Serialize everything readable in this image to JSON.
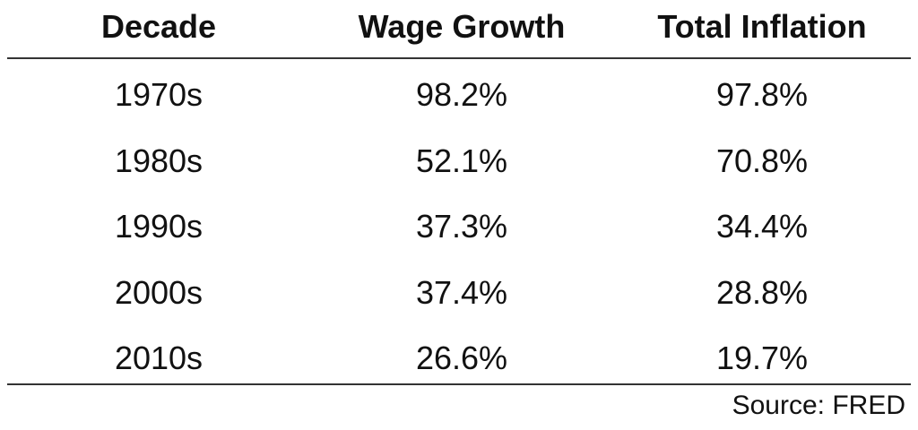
{
  "chart_data": {
    "type": "table",
    "columns": [
      "Decade",
      "Wage Growth",
      "Total Inflation"
    ],
    "rows": [
      [
        "1970s",
        "98.2%",
        "97.8%"
      ],
      [
        "1980s",
        "52.1%",
        "70.8%"
      ],
      [
        "1990s",
        "37.3%",
        "34.4%"
      ],
      [
        "2000s",
        "37.4%",
        "28.8%"
      ],
      [
        "2010s",
        "26.6%",
        "19.7%"
      ]
    ],
    "source": "Source: FRED"
  }
}
